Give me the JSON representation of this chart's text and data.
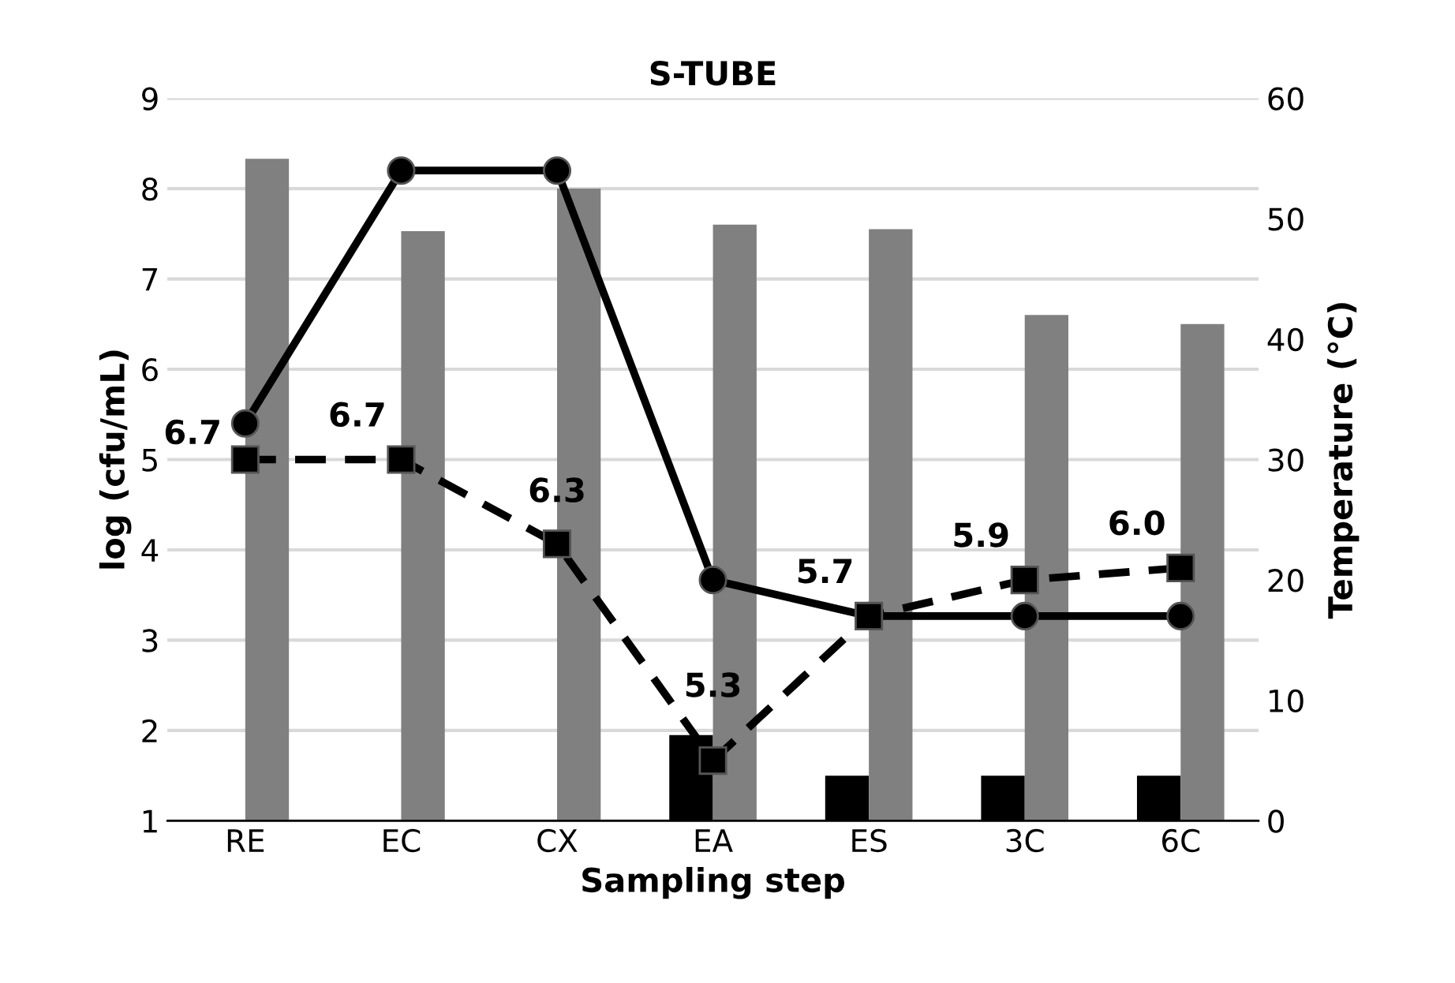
{
  "chart_data": {
    "type": "bar",
    "title": "S-TUBE",
    "xlabel": "Sampling step",
    "ylabel": "log (cfu/mL)",
    "y2label": "Temperature (°C)",
    "categories": [
      "RE",
      "EC",
      "CX",
      "EA",
      "ES",
      "3C",
      "6C"
    ],
    "series": [
      {
        "color": "#000000",
        "values": [
          null,
          null,
          null,
          1.95,
          1.5,
          1.5,
          1.5
        ]
      },
      {
        "color": "#808080",
        "values": [
          8.33,
          7.53,
          8.0,
          7.6,
          7.55,
          6.6,
          6.5
        ]
      },
      {
        "type": "line",
        "axis": "y2",
        "color": "#000000",
        "marker": "circle",
        "line_style": "solid",
        "values": [
          33,
          54,
          54,
          20,
          17,
          17,
          17
        ]
      },
      {
        "type": "line",
        "axis": "y2",
        "color": "#000000",
        "marker": "square",
        "line_style": "dashed",
        "values": [
          30,
          30,
          23,
          5,
          17,
          20,
          21
        ]
      }
    ],
    "annotations": [
      "6.7",
      "6.7",
      "6.3",
      "5.3",
      "5.7",
      "5.9",
      "6.0"
    ],
    "ylim": [
      1,
      9
    ],
    "yticks": [
      1,
      2,
      3,
      4,
      5,
      6,
      7,
      8,
      9
    ],
    "y2lim": [
      0,
      60
    ],
    "y2ticks": [
      0,
      10,
      20,
      30,
      40,
      50,
      60
    ],
    "grid": "y",
    "legend": false
  }
}
